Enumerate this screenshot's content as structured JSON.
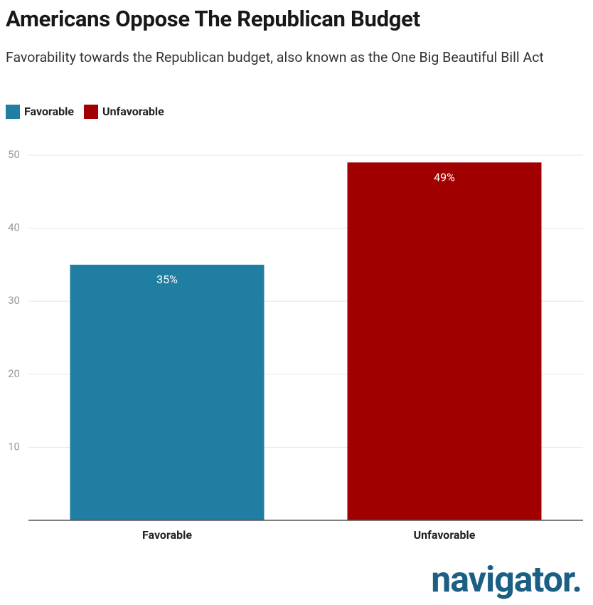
{
  "chart_data": {
    "type": "bar",
    "title": "Americans Oppose The Republican Budget",
    "subtitle": "Favorability towards the Republican budget, also known as the One Big Beautiful Bill Act",
    "categories": [
      "Favorable",
      "Unfavorable"
    ],
    "values": [
      35,
      49
    ],
    "value_labels": [
      "35%",
      "49%"
    ],
    "colors": [
      "#1f7ea1",
      "#a10000"
    ],
    "ylim": [
      0,
      50
    ],
    "yticks": [
      10,
      20,
      30,
      40,
      50
    ],
    "grid": true,
    "legend": "top-left",
    "logo": "navigator."
  }
}
